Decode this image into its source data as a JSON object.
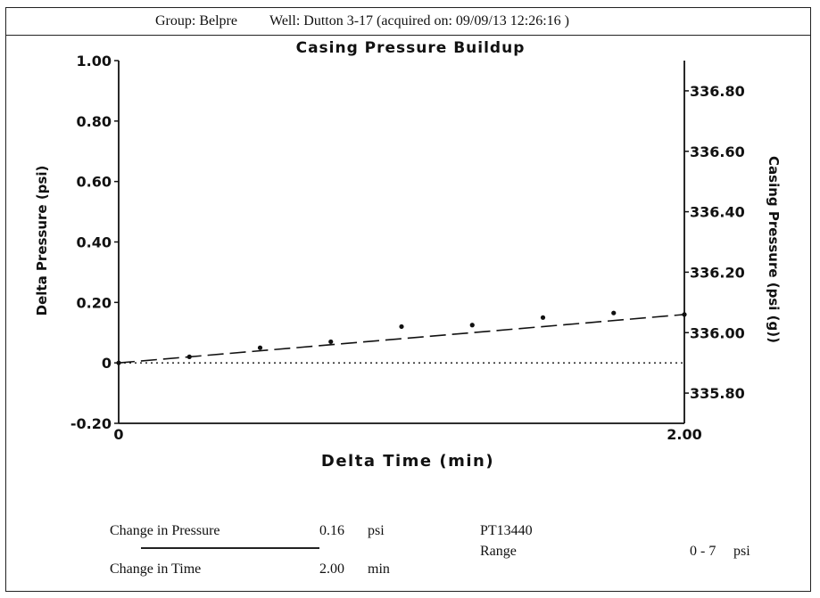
{
  "header": {
    "group": "Group: Belpre",
    "well": "Well: Dutton 3-17 (acquired on: 09/09/13 12:26:16 )"
  },
  "chart_data": {
    "type": "scatter",
    "title": "Casing Pressure Buildup",
    "xlabel": "Delta Time (min)",
    "ylabel": "Delta Pressure (psi)",
    "y2label": "Casing Pressure (psi (g))",
    "xlim": [
      0,
      2.0
    ],
    "ylim": [
      -0.2,
      1.0
    ],
    "y2lim": [
      335.7,
      336.9
    ],
    "x_ticks": [
      "0",
      "2.00"
    ],
    "y_ticks": [
      "1.00",
      "0.80",
      "0.60",
      "0.40",
      "0.20",
      "0",
      "-0.20"
    ],
    "y_tick_values": [
      1.0,
      0.8,
      0.6,
      0.4,
      0.2,
      0.0,
      -0.2
    ],
    "y2_ticks": [
      "336.80",
      "336.60",
      "336.40",
      "336.20",
      "336.00",
      "335.80"
    ],
    "y2_tick_values": [
      336.8,
      336.6,
      336.4,
      336.2,
      336.0,
      335.8
    ],
    "grid": false,
    "series": [
      {
        "style": "points",
        "x": [
          0.0,
          0.25,
          0.5,
          0.75,
          1.0,
          1.25,
          1.5,
          1.75,
          2.0
        ],
        "y": [
          0.0,
          0.02,
          0.05,
          0.07,
          0.12,
          0.125,
          0.15,
          0.165,
          0.16
        ]
      },
      {
        "style": "dashed-fit",
        "x": [
          0.0,
          2.0
        ],
        "y": [
          0.0,
          0.16
        ]
      },
      {
        "style": "dotted-baseline",
        "x": [
          0.0,
          2.0
        ],
        "y": [
          0.0,
          0.0
        ]
      }
    ]
  },
  "footer": {
    "change_pressure_label": "Change in Pressure",
    "change_pressure_value": "0.16",
    "change_pressure_unit": "psi",
    "change_time_label": "Change in Time",
    "change_time_value": "2.00",
    "change_time_unit": "min",
    "gauge_id": "PT13440",
    "range_label": "Range",
    "range_value": "0 - 7",
    "range_unit": "psi"
  }
}
